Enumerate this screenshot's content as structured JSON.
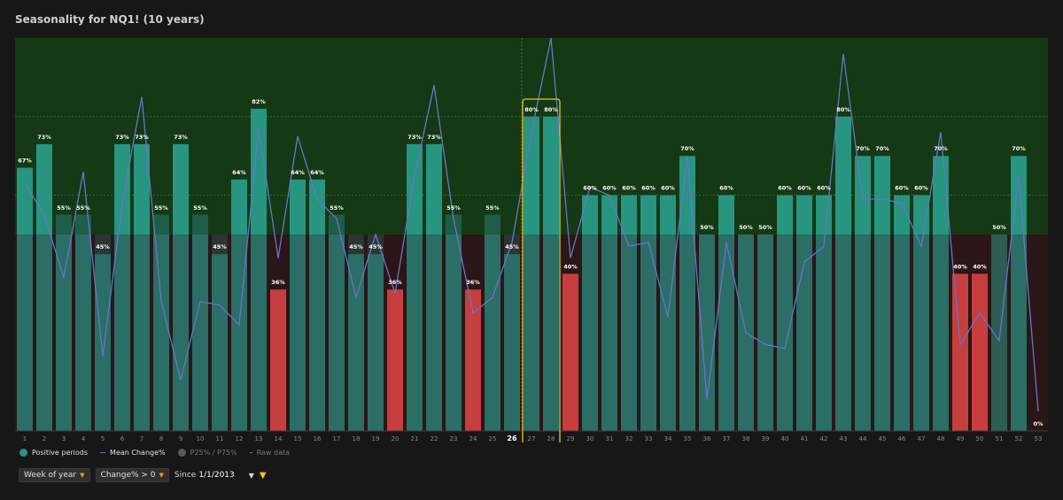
{
  "title": "Seasonality for NQ1! (10 years)",
  "legend": {
    "positive": "Positive periods",
    "mean": "Mean Change%",
    "pct": "P25% / P75%",
    "raw": "Raw data"
  },
  "controls": {
    "period": "Week of year",
    "filter": "Change% > 0",
    "since_label": "Since",
    "since_value": "1/1/2013"
  },
  "colors": {
    "positive_bar": "#279580",
    "negative_bar": "#c63e3e",
    "neutral_bar": "#2d6e56",
    "plot_top": "#143914",
    "plot_bottom": "#2a1616",
    "mean_line": "#6b73c9",
    "highlight": "#f1c40f"
  },
  "chart_data": {
    "type": "bar",
    "categories": [
      "1",
      "2",
      "3",
      "4",
      "5",
      "6",
      "7",
      "8",
      "9",
      "10",
      "11",
      "12",
      "13",
      "14",
      "15",
      "16",
      "17",
      "18",
      "19",
      "20",
      "21",
      "22",
      "23",
      "24",
      "25",
      "26",
      "27",
      "28",
      "29",
      "30",
      "31",
      "32",
      "33",
      "34",
      "35",
      "36",
      "37",
      "38",
      "39",
      "40",
      "41",
      "42",
      "43",
      "44",
      "45",
      "46",
      "47",
      "48",
      "49",
      "50",
      "51",
      "52",
      "53"
    ],
    "series": [
      {
        "name": "Positive periods",
        "values": [
          67,
          73,
          55,
          55,
          45,
          73,
          73,
          55,
          73,
          55,
          45,
          64,
          82,
          36,
          64,
          64,
          55,
          45,
          45,
          36,
          73,
          73,
          55,
          36,
          55,
          45,
          80,
          80,
          40,
          60,
          60,
          60,
          60,
          60,
          70,
          50,
          60,
          50,
          50,
          60,
          60,
          60,
          80,
          70,
          70,
          60,
          60,
          70,
          40,
          40,
          50,
          70,
          0
        ],
        "labels": [
          "67%",
          "73%",
          "55%",
          "55%",
          "45%",
          "73%",
          "73%",
          "55%",
          "73%",
          "55%",
          "45%",
          "64%",
          "82%",
          "36%",
          "64%",
          "64%",
          "55%",
          "45%",
          "45%",
          "36%",
          "73%",
          "73%",
          "55%",
          "36%",
          "55%",
          "45%",
          "80%",
          "80%",
          "40%",
          "60%",
          "60%",
          "60%",
          "60%",
          "60%",
          "70%",
          "50%",
          "60%",
          "50%",
          "50%",
          "60%",
          "60%",
          "60%",
          "80%",
          "70%",
          "70%",
          "60%",
          "60%",
          "70%",
          "40%",
          "40%",
          "50%",
          "70%",
          "0%"
        ]
      },
      {
        "name": "Mean Change%",
        "values": [
          63,
          55,
          39,
          66,
          19,
          58,
          85,
          33,
          13,
          33,
          32,
          27,
          77,
          44,
          75,
          59,
          54,
          34,
          50,
          35,
          65,
          88,
          54,
          30,
          34,
          48,
          76,
          100,
          44,
          62,
          60,
          47,
          48,
          29,
          70,
          8,
          48,
          25,
          22,
          21,
          43,
          47,
          96,
          59,
          59,
          58,
          47,
          76,
          22,
          30,
          23,
          65,
          5
        ]
      }
    ],
    "highlight_categories": [
      "27",
      "28"
    ],
    "current_category": "26",
    "ylim": [
      0,
      100
    ],
    "xlabel": "",
    "ylabel": "",
    "grid": true
  }
}
